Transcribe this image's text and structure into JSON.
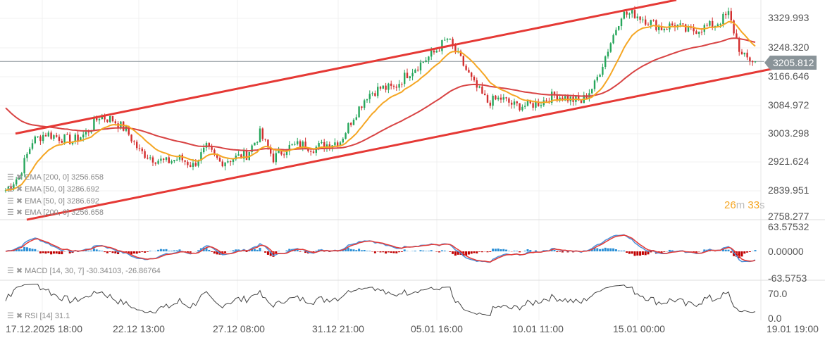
{
  "chart_data": {
    "type": "candlestick",
    "closes": [
      2835,
      2876,
      2977,
      2998,
      2987,
      2977,
      2998,
      3048,
      3038,
      3008,
      2947,
      2927,
      2916,
      2927,
      2906,
      2957,
      2916,
      2927,
      2937,
      2998,
      2927,
      2957,
      2967,
      2957,
      2967,
      2977,
      3048,
      3109,
      3129,
      3129,
      3170,
      3200,
      3231,
      3271,
      3210,
      3139,
      3089,
      3099,
      3079,
      3079,
      3089,
      3109,
      3099,
      3089,
      3139,
      3241,
      3342,
      3342,
      3322,
      3302,
      3312,
      3291,
      3302,
      3312,
      3342,
      3220,
      3205.812
    ],
    "current_price": 3205.812,
    "price_axis": [
      "3329.993",
      "3248.320",
      "3166.646",
      "3084.972",
      "3003.298",
      "2921.624",
      "2839.951",
      "2758.277"
    ],
    "price_range": [
      2758.277,
      3329.993
    ],
    "time_axis": [
      "17.12.2025  18:00",
      "22.12  13:00",
      "27.12  08:00",
      "31.12  21:00",
      "05.01  16:00",
      "10.01  11:00",
      "15.01  00:00",
      "19.01  19:00"
    ],
    "channel": {
      "upper": [
        2998,
        3383
      ],
      "lower": [
        2750,
        3184
      ],
      "color": "#e53935"
    },
    "colors": {
      "up": "#26a65b",
      "down": "#d32f2f",
      "ema50": "#f5a623",
      "ema200": "#d84343",
      "macd": "#4a90d9",
      "signal": "#e53935",
      "rsi": "#444444"
    },
    "indicators": [
      {
        "label": "EMA  [200,  0]  3256.658"
      },
      {
        "label": "EMA  [50,  0]  3286.692"
      },
      {
        "label": "EMA  [50,  0]  3286.692"
      },
      {
        "label": "EMA  [200,  0]  3256.658"
      }
    ],
    "macd": {
      "label": "MACD  [14,  30,  7]  -30.34103,  -26.86764",
      "axis": [
        "63.57532",
        "0.00000",
        "-63.5753"
      ]
    },
    "rsi": {
      "label": "RSI  [14]  31.1",
      "axis": [
        "70.0",
        "0.0"
      ]
    },
    "timer": {
      "min": "26",
      "min_unit": "m",
      "sec": "33",
      "sec_unit": "s"
    }
  }
}
